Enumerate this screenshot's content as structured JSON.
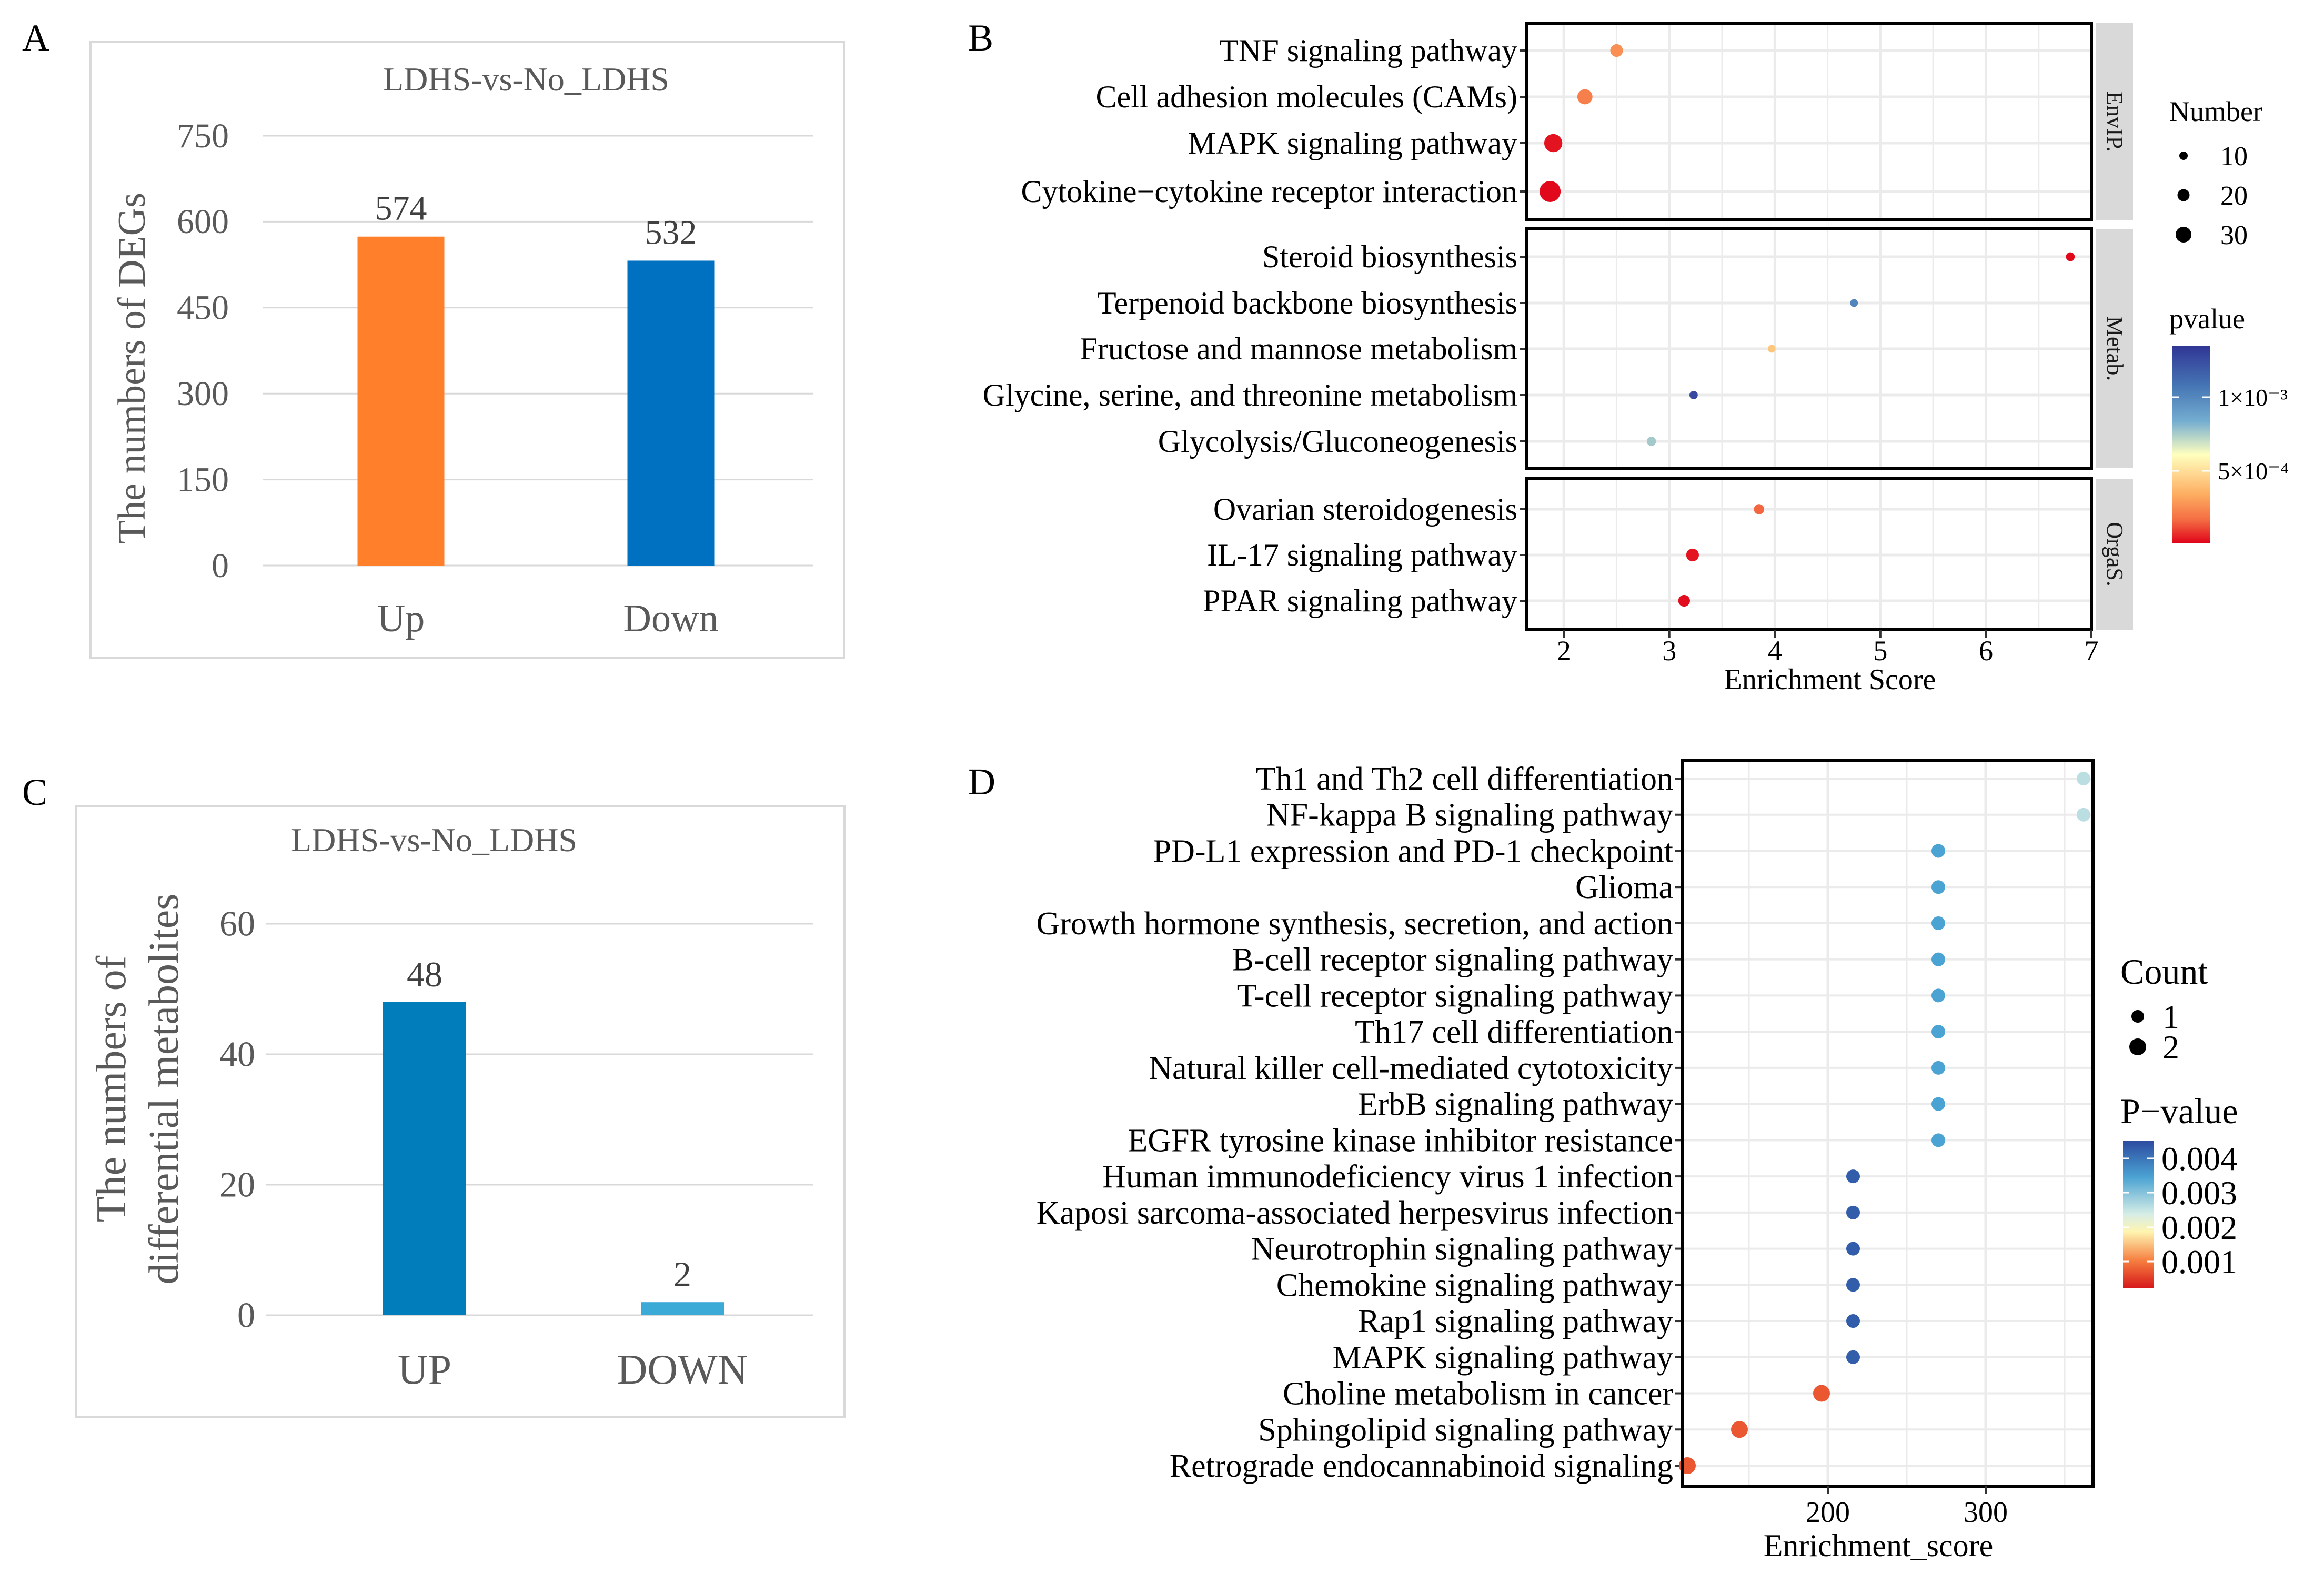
{
  "panel_labels": {
    "a": "A",
    "b": "B",
    "c": "C",
    "d": "D"
  },
  "chart_data": [
    {
      "id": "A",
      "type": "bar",
      "title": "LDHS-vs-No_LDHS",
      "ylabel": "The numbers of  DEGs",
      "xlabel": "",
      "categories": [
        "Up",
        "Down"
      ],
      "values": [
        574,
        532
      ],
      "labels": [
        "574",
        "532"
      ],
      "colors": [
        "#FF7F2A",
        "#0070C0"
      ],
      "ylim": [
        0,
        750
      ],
      "yticks": [
        "0",
        "150",
        "300",
        "450",
        "600",
        "750"
      ],
      "grid": true
    },
    {
      "id": "B",
      "type": "scatter",
      "xlabel": "Enrichment Score",
      "xlim": [
        1.65,
        7.0
      ],
      "xticks": [
        "2",
        "3",
        "4",
        "5",
        "6",
        "7"
      ],
      "facets": [
        {
          "strip": "EnvIP.",
          "terms": [
            "TNF signaling pathway",
            "Cell adhesion molecules (CAMs)",
            "MAPK signaling pathway",
            "Cytokine−cytokine receptor interaction"
          ],
          "scores": [
            2.5,
            2.2,
            1.9,
            1.87
          ],
          "numbers": [
            13,
            18,
            24,
            30
          ],
          "pvalues": [
            0.0003,
            0.00025,
            3e-05,
            1e-05
          ]
        },
        {
          "strip": "Metab.",
          "terms": [
            "Steroid biosynthesis",
            "Terpenoid backbone biosynthesis",
            "Fructose and mannose metabolism",
            "Glycine, serine, and threonine metabolism",
            "Glycolysis/Gluconeogenesis"
          ],
          "scores": [
            6.8,
            4.75,
            3.97,
            3.23,
            2.83
          ],
          "numbers": [
            5,
            3,
            3,
            4,
            6
          ],
          "pvalues": [
            1e-05,
            0.0012,
            0.0005,
            0.0015,
            0.0009
          ]
        },
        {
          "strip": "OrgaS.",
          "terms": [
            "Ovarian steroidogenesis",
            "IL-17 signaling pathway",
            "PPAR signaling pathway"
          ],
          "scores": [
            3.85,
            3.22,
            3.14
          ],
          "numbers": [
            8,
            13,
            11
          ],
          "pvalues": [
            0.00018,
            3e-05,
            2e-05
          ]
        }
      ],
      "legend_size_title": "Number",
      "legend_size_labels": [
        "10",
        "20",
        "30"
      ],
      "legend_color_title": "pvalue",
      "legend_color_labels": [
        "1×10⁻³",
        "5×10⁻⁴"
      ]
    },
    {
      "id": "C",
      "type": "bar",
      "title": "LDHS-vs-No_LDHS",
      "ylabel_lines": [
        "The numbers of",
        "differential metabolites"
      ],
      "xlabel": "",
      "categories": [
        "UP",
        "DOWN"
      ],
      "values": [
        48,
        2
      ],
      "labels": [
        "48",
        "2"
      ],
      "colors": [
        "#007DBA",
        "#3BAAD6"
      ],
      "ylim": [
        0,
        60
      ],
      "yticks": [
        "0",
        "20",
        "40",
        "60"
      ],
      "grid": true
    },
    {
      "id": "D",
      "type": "scatter",
      "xlabel": "Enrichment_score",
      "xlim": [
        108,
        368
      ],
      "xticks": [
        "200",
        "300"
      ],
      "terms": [
        "Th1 and Th2 cell differentiation",
        "NF-kappa B signaling pathway",
        "PD-L1 expression and PD-1 checkpoint ",
        "Glioma",
        "Growth hormone synthesis, secretion, and action",
        "B-cell receptor signaling pathway",
        "T-cell receptor signaling pathway",
        "Th17 cell differentiation",
        "Natural killer cell-mediated cytotoxicity",
        "ErbB signaling pathway",
        "EGFR tyrosine kinase inhibitor resistance",
        "Human immunodeficiency virus 1 infection",
        "Kaposi sarcoma-associated herpesvirus infection",
        "Neurotrophin signaling pathway",
        "Chemokine signaling pathway",
        "Rap1 signaling pathway",
        "MAPK signaling pathway",
        "Choline metabolism in cancer",
        "Sphingolipid signaling pathway",
        "Retrograde endocannabinoid signaling"
      ],
      "scores": [
        362,
        362,
        270,
        270,
        270,
        270,
        270,
        270,
        270,
        270,
        270,
        216,
        216,
        216,
        216,
        216,
        216,
        196,
        144,
        111
      ],
      "counts": [
        1,
        1,
        1,
        1,
        1,
        1,
        1,
        1,
        1,
        1,
        1,
        1,
        1,
        1,
        1,
        1,
        1,
        2,
        2,
        2
      ],
      "pvalues": [
        0.0027,
        0.0027,
        0.0035,
        0.0035,
        0.0035,
        0.0035,
        0.0035,
        0.0035,
        0.0035,
        0.0035,
        0.0035,
        0.0043,
        0.0043,
        0.0043,
        0.0043,
        0.0043,
        0.0043,
        0.0008,
        0.0008,
        0.0008
      ],
      "legend_size_title": "Count",
      "legend_size_labels": [
        "1",
        "2"
      ],
      "legend_color_title": "P−value",
      "legend_color_labels": [
        "0.004",
        "0.003",
        "0.002",
        "0.001"
      ]
    }
  ]
}
